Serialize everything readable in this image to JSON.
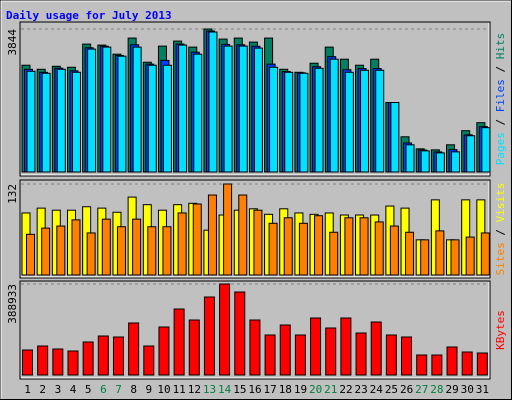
{
  "chart_data": [
    {
      "type": "bar",
      "title": "Daily usage for July 2013",
      "legend_separator": " / ",
      "ylim": [
        0,
        3844
      ],
      "yticks": [
        3844
      ],
      "series": [
        {
          "name": "Hits",
          "color": "#008060",
          "values": [
            2870,
            2761,
            2842,
            2815,
            3438,
            3411,
            3167,
            3600,
            2951,
            3384,
            3519,
            3357,
            3844,
            3573,
            3600,
            3492,
            3600,
            2761,
            2680,
            2924,
            3357,
            3032,
            2870,
            3032,
            1868,
            947,
            623,
            596,
            731,
            1110,
            1326
          ]
        },
        {
          "name": "Files",
          "color": "#0040ff",
          "values": [
            2760,
            2680,
            2790,
            2720,
            3340,
            3380,
            3130,
            3420,
            2900,
            3000,
            3440,
            3220,
            3790,
            3430,
            3420,
            3380,
            2900,
            2700,
            2665,
            2830,
            3100,
            2750,
            2780,
            2780,
            1868,
            780,
            590,
            540,
            600,
            1000,
            1220
          ]
        },
        {
          "name": "Pages",
          "color": "#00e0ff",
          "values": [
            2707,
            2653,
            2761,
            2680,
            3303,
            3357,
            3113,
            3357,
            2869,
            2869,
            3411,
            3167,
            3763,
            3384,
            3384,
            3330,
            2815,
            2680,
            2653,
            2788,
            3032,
            2680,
            2734,
            2734,
            1868,
            731,
            568,
            514,
            541,
            974,
            1191
          ]
        }
      ]
    },
    {
      "type": "bar",
      "ylim": [
        0,
        132
      ],
      "yticks": [
        132
      ],
      "series": [
        {
          "name": "Visits",
          "color": "#ffff00",
          "values": [
            90,
            97,
            94,
            94,
            99,
            97,
            91,
            113,
            102,
            94,
            102,
            104,
            65,
            87,
            94,
            96,
            88,
            96,
            90,
            88,
            90,
            87,
            87,
            87,
            100,
            97,
            51,
            109,
            51,
            109,
            109
          ]
        },
        {
          "name": "Sites",
          "color": "#ff8000",
          "values": [
            59,
            68,
            71,
            80,
            61,
            81,
            70,
            81,
            70,
            70,
            90,
            103,
            116,
            132,
            116,
            94,
            75,
            83,
            75,
            86,
            62,
            83,
            83,
            77,
            71,
            62,
            51,
            64,
            51,
            55,
            61
          ]
        }
      ]
    },
    {
      "type": "bar",
      "ylim": [
        0,
        388933
      ],
      "yticks": [
        388933
      ],
      "categories": [
        "1",
        "2",
        "3",
        "4",
        "5",
        "6",
        "7",
        "8",
        "9",
        "10",
        "11",
        "12",
        "13",
        "14",
        "15",
        "16",
        "17",
        "18",
        "19",
        "20",
        "21",
        "22",
        "23",
        "24",
        "25",
        "26",
        "27",
        "28",
        "29",
        "30",
        "31"
      ],
      "highlight": [
        5,
        6,
        12,
        13,
        19,
        20,
        26,
        27
      ],
      "highlight_color": "#008040",
      "series": [
        {
          "name": "KBytes",
          "color": "#ff0000",
          "values": [
            106850,
            123946,
            111124,
            102576,
            141042,
            166686,
            162412,
            222248,
            123946,
            205152,
            282084,
            235070,
            333372,
            388933,
            354742,
            235070,
            170960,
            213700,
            170960,
            243618,
            200878,
            243618,
            179508,
            226522,
            170960,
            162412,
            85480,
            85480,
            119672,
            98302,
            94028
          ]
        }
      ]
    }
  ]
}
